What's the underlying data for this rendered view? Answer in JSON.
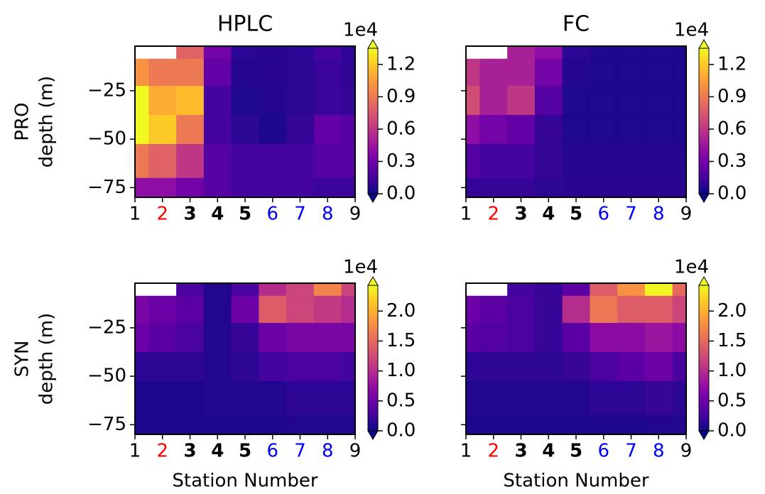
{
  "chart_data": [
    {
      "type": "contour",
      "title": "HPLC",
      "ylabel": [
        "PRO",
        "depth (m)"
      ],
      "colormap": "plasma",
      "x": [
        1,
        2,
        3,
        4,
        5,
        6,
        7,
        8,
        9
      ],
      "xlim": [
        1,
        9
      ],
      "xticks": [
        1,
        2,
        3,
        4,
        5,
        6,
        7,
        8,
        9
      ],
      "xtick_colors": [
        "#000000",
        "#ff0000",
        "#000000",
        "#000000",
        "#000000",
        "#0000ff",
        "#0000ff",
        "#0000ff",
        "#000000"
      ],
      "xtick_bold": [
        false,
        false,
        true,
        true,
        true,
        false,
        false,
        false,
        false
      ],
      "ylim": [
        -80,
        -2
      ],
      "yticks": [
        {
          "value": -75,
          "label": "−75"
        },
        {
          "value": -50,
          "label": "−50"
        },
        {
          "value": -25,
          "label": "−25"
        }
      ],
      "depths": [
        -2,
        -15,
        -30,
        -45,
        -60,
        -80
      ],
      "z": [
        [
          null,
          null,
          8000,
          3000,
          800,
          700,
          800,
          1500,
          900
        ],
        [
          10000,
          9000,
          9000,
          2500,
          600,
          700,
          800,
          1200,
          900
        ],
        [
          13500,
          11000,
          11500,
          1500,
          500,
          600,
          800,
          1200,
          1000
        ],
        [
          13500,
          12000,
          9000,
          1500,
          800,
          400,
          1000,
          2500,
          2000
        ],
        [
          9000,
          8000,
          6000,
          2000,
          1500,
          1500,
          1500,
          2000,
          2000
        ],
        [
          4000,
          4000,
          3000,
          2000,
          1500,
          1500,
          1500,
          1200,
          1200
        ]
      ],
      "clim": [
        0,
        13500
      ],
      "cbar_offset": "1e4",
      "cticks": [
        {
          "value": 0,
          "label": "0.0"
        },
        {
          "value": 3000,
          "label": "0.3"
        },
        {
          "value": 6000,
          "label": "0.6"
        },
        {
          "value": 9000,
          "label": "0.9"
        },
        {
          "value": 12000,
          "label": "1.2"
        }
      ]
    },
    {
      "type": "contour",
      "title": "FC",
      "colormap": "plasma",
      "x": [
        1,
        2,
        3,
        4,
        5,
        6,
        7,
        8,
        9
      ],
      "xlim": [
        1,
        9
      ],
      "xticks": [
        1,
        2,
        3,
        4,
        5,
        6,
        7,
        8,
        9
      ],
      "xtick_colors": [
        "#000000",
        "#ff0000",
        "#000000",
        "#000000",
        "#000000",
        "#0000ff",
        "#0000ff",
        "#0000ff",
        "#000000"
      ],
      "xtick_bold": [
        false,
        false,
        true,
        true,
        true,
        false,
        false,
        false,
        false
      ],
      "ylim": [
        -80,
        -2
      ],
      "yticks": [
        -75,
        -50,
        -25
      ],
      "depths": [
        -2,
        -15,
        -30,
        -45,
        -60,
        -80
      ],
      "z": [
        [
          null,
          null,
          5000,
          4000,
          800,
          500,
          500,
          500,
          500
        ],
        [
          6000,
          5000,
          5000,
          3000,
          600,
          500,
          500,
          500,
          500
        ],
        [
          7000,
          5000,
          6000,
          2000,
          500,
          500,
          500,
          500,
          500
        ],
        [
          4000,
          3000,
          2500,
          1000,
          500,
          500,
          500,
          500,
          500
        ],
        [
          2000,
          1500,
          1500,
          1000,
          600,
          600,
          600,
          600,
          600
        ],
        [
          1000,
          1000,
          1000,
          800,
          700,
          700,
          700,
          700,
          700
        ]
      ],
      "clim": [
        0,
        13500
      ],
      "cbar_offset": "1e4",
      "cticks": [
        {
          "value": 0,
          "label": "0.0"
        },
        {
          "value": 3000,
          "label": "0.3"
        },
        {
          "value": 6000,
          "label": "0.6"
        },
        {
          "value": 9000,
          "label": "0.9"
        },
        {
          "value": 12000,
          "label": "1.2"
        }
      ]
    },
    {
      "type": "contour",
      "ylabel": [
        "SYN",
        "depth (m)"
      ],
      "xlabel": "Station Number",
      "colormap": "plasma",
      "x": [
        1,
        2,
        3,
        4,
        5,
        6,
        7,
        8,
        9
      ],
      "xlim": [
        1,
        9
      ],
      "xticks": [
        1,
        2,
        3,
        4,
        5,
        6,
        7,
        8,
        9
      ],
      "xtick_colors": [
        "#000000",
        "#ff0000",
        "#000000",
        "#000000",
        "#000000",
        "#0000ff",
        "#0000ff",
        "#0000ff",
        "#000000"
      ],
      "xtick_bold": [
        false,
        false,
        true,
        true,
        true,
        false,
        false,
        false,
        false
      ],
      "ylim": [
        -80,
        -2
      ],
      "yticks": [
        {
          "value": -75,
          "label": "−75"
        },
        {
          "value": -50,
          "label": "−50"
        },
        {
          "value": -25,
          "label": "−25"
        }
      ],
      "depths": [
        -2,
        -15,
        -30,
        -45,
        -60,
        -80
      ],
      "z": [
        [
          null,
          null,
          3000,
          1000,
          3000,
          10000,
          12000,
          17000,
          12000
        ],
        [
          6000,
          5000,
          4000,
          1000,
          5000,
          14000,
          12000,
          11000,
          10000
        ],
        [
          5000,
          4000,
          3000,
          1000,
          2000,
          5000,
          6000,
          6000,
          6000
        ],
        [
          1500,
          1500,
          1500,
          1000,
          1500,
          2500,
          3000,
          3000,
          2500
        ],
        [
          800,
          800,
          800,
          1000,
          1000,
          1000,
          1500,
          1500,
          1500
        ],
        [
          800,
          800,
          800,
          800,
          800,
          800,
          1000,
          1000,
          1000
        ]
      ],
      "clim": [
        0,
        24300
      ],
      "cbar_offset": "1e4",
      "cticks": [
        {
          "value": 0,
          "label": "0.0"
        },
        {
          "value": 5000,
          "label": "0.5"
        },
        {
          "value": 10000,
          "label": "1.0"
        },
        {
          "value": 15000,
          "label": "1.5"
        },
        {
          "value": 20000,
          "label": "2.0"
        }
      ]
    },
    {
      "type": "contour",
      "xlabel": "Station Number",
      "colormap": "plasma",
      "x": [
        1,
        2,
        3,
        4,
        5,
        6,
        7,
        8,
        9
      ],
      "xlim": [
        1,
        9
      ],
      "xticks": [
        1,
        2,
        3,
        4,
        5,
        6,
        7,
        8,
        9
      ],
      "xtick_colors": [
        "#000000",
        "#ff0000",
        "#000000",
        "#000000",
        "#000000",
        "#0000ff",
        "#0000ff",
        "#0000ff",
        "#000000"
      ],
      "xtick_bold": [
        false,
        false,
        true,
        true,
        true,
        false,
        false,
        false,
        false
      ],
      "ylim": [
        -80,
        -2
      ],
      "yticks": [
        -75,
        -50,
        -25
      ],
      "depths": [
        -2,
        -15,
        -30,
        -45,
        -60,
        -80
      ],
      "z": [
        [
          null,
          null,
          2500,
          2000,
          4000,
          14000,
          18000,
          24000,
          15000
        ],
        [
          5000,
          4000,
          3000,
          2000,
          10000,
          16000,
          14000,
          14000,
          12000
        ],
        [
          4000,
          3500,
          3000,
          2000,
          4000,
          7000,
          7000,
          8000,
          7000
        ],
        [
          1500,
          1500,
          1500,
          1500,
          2000,
          3000,
          4000,
          5000,
          3000
        ],
        [
          1000,
          1000,
          1000,
          1000,
          1000,
          1500,
          1500,
          2000,
          1500
        ],
        [
          800,
          800,
          800,
          800,
          800,
          800,
          800,
          1000,
          1000
        ]
      ],
      "clim": [
        0,
        24300
      ],
      "cbar_offset": "1e4",
      "cticks": [
        {
          "value": 0,
          "label": "0.0"
        },
        {
          "value": 5000,
          "label": "0.5"
        },
        {
          "value": 10000,
          "label": "1.0"
        },
        {
          "value": 15000,
          "label": "1.5"
        },
        {
          "value": 20000,
          "label": "2.0"
        }
      ]
    }
  ]
}
